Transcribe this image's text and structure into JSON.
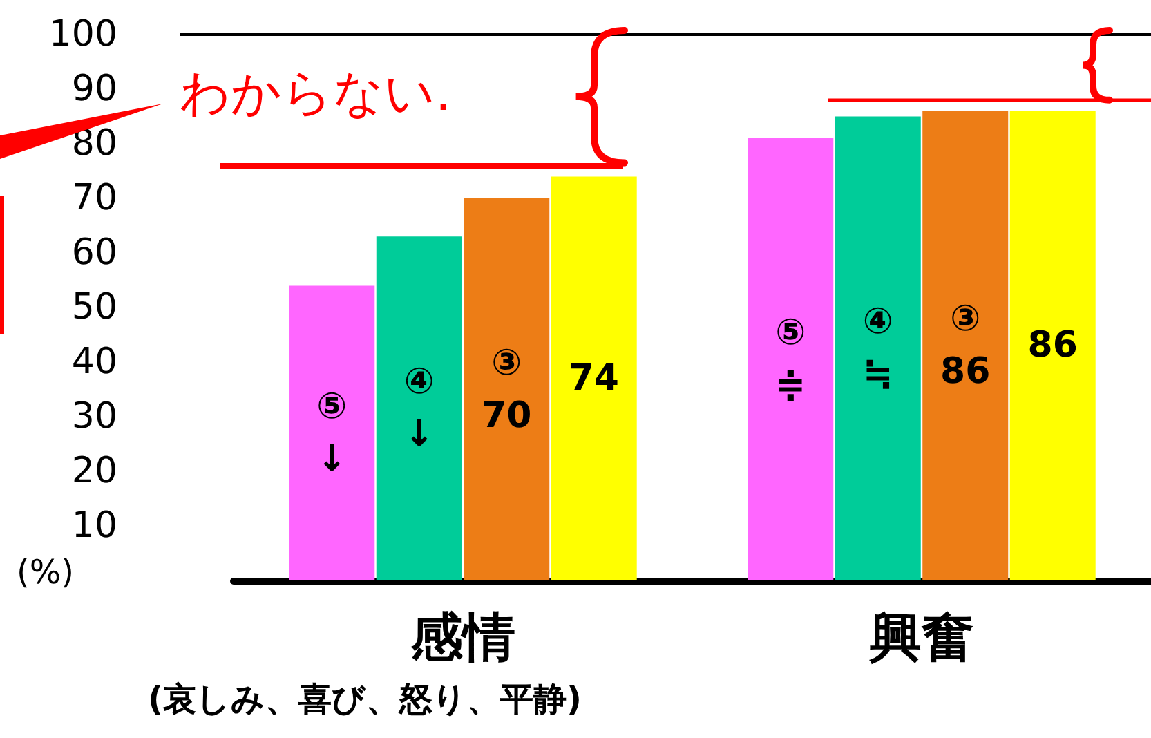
{
  "chart_data": {
    "type": "bar",
    "ylabel": "(%)",
    "categories": [
      "感情",
      "興奮"
    ],
    "series": [
      {
        "color": "#ff66ff",
        "values": [
          54,
          81
        ],
        "value_labels": [
          "⑤\n↓",
          "⑤\n≑"
        ]
      },
      {
        "color": "#00cc99",
        "values": [
          63,
          85
        ],
        "value_labels": [
          "④\n↓",
          "④\n≒"
        ]
      },
      {
        "color": "#ed7d16",
        "values": [
          70,
          86
        ],
        "value_labels": [
          "③\n70",
          "③\n86"
        ]
      },
      {
        "color": "#ffff00",
        "values": [
          74,
          86
        ],
        "value_labels": [
          "74",
          "86"
        ]
      }
    ],
    "ylim": [
      0,
      100
    ],
    "yticks": [
      10,
      20,
      30,
      40,
      50,
      60,
      70,
      80,
      90,
      100
    ],
    "ref_lines": [
      {
        "axis": "y",
        "value": 100,
        "color": "#000000"
      },
      {
        "axis": "y",
        "value": 76,
        "color": "#ff0000"
      },
      {
        "axis": "y",
        "value": 88,
        "color": "#ff0000"
      }
    ],
    "annotations": [
      "わからない.",
      "(哀しみ、喜び、怒り、平静)"
    ],
    "grid": false
  }
}
